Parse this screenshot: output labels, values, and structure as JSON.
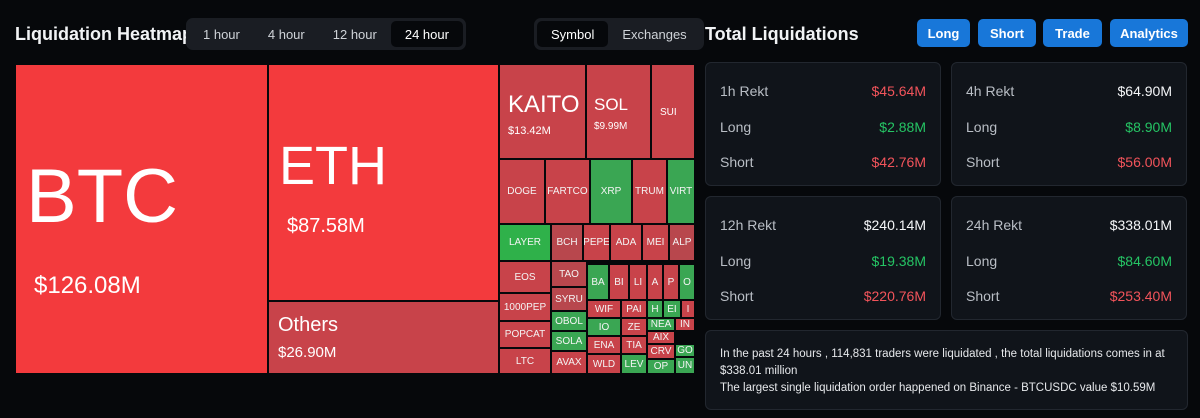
{
  "heatmap": {
    "title": "Liquidation Heatmap",
    "timeframes": [
      "1 hour",
      "4 hour",
      "12 hour",
      "24 hour"
    ],
    "active_timeframe": "24 hour",
    "group_by": [
      "Symbol",
      "Exchanges"
    ],
    "active_group_by": "Symbol",
    "big_tiles": {
      "btc": {
        "symbol": "BTC",
        "value": "$126.08M"
      },
      "eth": {
        "symbol": "ETH",
        "value": "$87.58M"
      },
      "others": {
        "symbol": "Others",
        "value": "$26.90M"
      },
      "kaito": {
        "symbol": "KAITO",
        "value": "$13.42M"
      },
      "sol": {
        "symbol": "SOL",
        "value": "$9.99M"
      },
      "sui": {
        "symbol": "SUI"
      }
    },
    "small_tiles": [
      "DOGE",
      "FARTCO",
      "XRP",
      "TRUM",
      "VIRT",
      "LAYER",
      "BCH",
      "PEPE",
      "ADA",
      "MEI",
      "ALP",
      "EOS",
      "TAO",
      "BA",
      "BI",
      "LI",
      "A",
      "P",
      "O",
      "1000PEP",
      "SYRU",
      "WIF",
      "PAI",
      "H",
      "EI",
      "I",
      "POPCAT",
      "OBOL",
      "IO",
      "ZE",
      "NEA",
      "IN",
      "SOLA",
      "ENA",
      "TIA",
      "AIX",
      "GO",
      "LTC",
      "AVAX",
      "WLD",
      "LEV",
      "CRV",
      "OP",
      "UN"
    ]
  },
  "total": {
    "title": "Total Liquidations",
    "buttons": [
      "Long",
      "Short",
      "Trade",
      "Analytics"
    ],
    "cards": {
      "h1": {
        "title": "1h Rekt",
        "total": "$45.64M",
        "long_label": "Long",
        "long": "$2.88M",
        "short_label": "Short",
        "short": "$42.76M"
      },
      "h4": {
        "title": "4h Rekt",
        "total": "$64.90M",
        "long_label": "Long",
        "long": "$8.90M",
        "short_label": "Short",
        "short": "$56.00M"
      },
      "h12": {
        "title": "12h Rekt",
        "total": "$240.14M",
        "long_label": "Long",
        "long": "$19.38M",
        "short_label": "Short",
        "short": "$220.76M"
      },
      "h24": {
        "title": "24h Rekt",
        "total": "$338.01M",
        "long_label": "Long",
        "long": "$84.60M",
        "short_label": "Short",
        "short": "$253.40M"
      }
    },
    "summary": {
      "line1": "In the past 24 hours , 114,831 traders were liquidated , the total liquidations comes in at $338.01 million",
      "line2": "The largest single liquidation order happened on Binance - BTCUSDC value $10.59M"
    }
  },
  "colors": {
    "accent_blue": "#1877d9",
    "long_green": "#25c464",
    "short_red": "#f2545b",
    "tile_red": "#f33a3d",
    "tile_green": "#2fb14a"
  }
}
